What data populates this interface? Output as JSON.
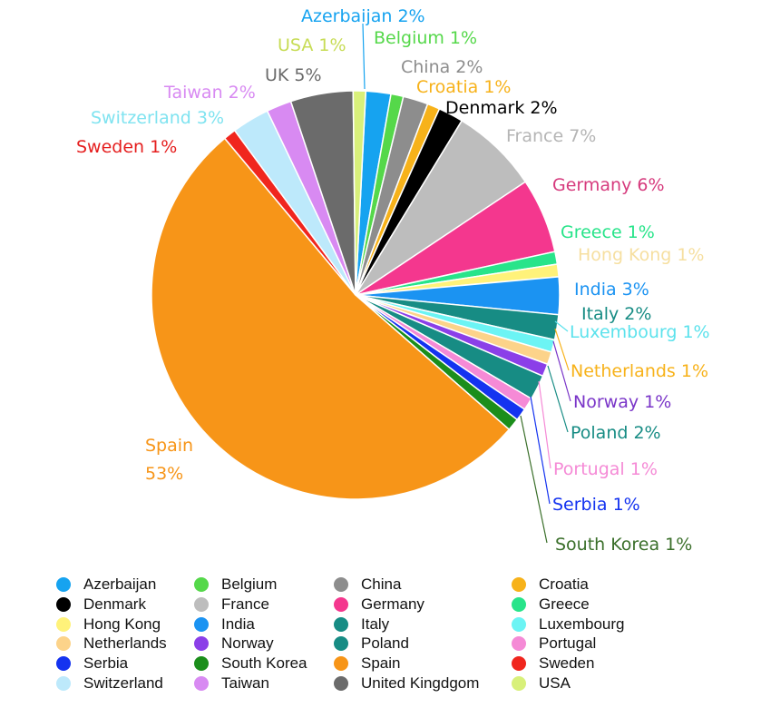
{
  "chart_data": {
    "type": "pie",
    "slices": [
      {
        "key": "azerbaijan",
        "label": "Azerbaijan 2%",
        "legend": "Azerbaijan",
        "value": 2,
        "color": "#16A3F0",
        "label_color": "#16A3F0"
      },
      {
        "key": "belgium",
        "label": "Belgium 1%",
        "legend": "Belgium",
        "value": 1,
        "color": "#55D84A",
        "label_color": "#55D84A"
      },
      {
        "key": "china",
        "label": "China 2%",
        "legend": "China",
        "value": 2,
        "color": "#8D8D8D",
        "label_color": "#8D8D8D"
      },
      {
        "key": "croatia",
        "label": "Croatia 1%",
        "legend": "Croatia",
        "value": 1,
        "color": "#F7B21A",
        "label_color": "#F7B21A"
      },
      {
        "key": "denmark",
        "label": "Denmark 2%",
        "legend": "Denmark",
        "value": 2,
        "color": "#000000",
        "label_color": "#000000"
      },
      {
        "key": "france",
        "label": "France 7%",
        "legend": "France",
        "value": 7,
        "color": "#BDBDBD",
        "label_color": "#B5B5B5"
      },
      {
        "key": "germany",
        "label": "Germany 6%",
        "legend": "Germany",
        "value": 6,
        "color": "#F4378E",
        "label_color": "#D63A7D"
      },
      {
        "key": "greece",
        "label": "Greece 1%",
        "legend": "Greece",
        "value": 1,
        "color": "#28E48A",
        "label_color": "#28E48A"
      },
      {
        "key": "hongkong",
        "label": "Hong Kong 1%",
        "legend": "Hong Kong",
        "value": 1,
        "color": "#FFF27A",
        "label_color": "#F6DFA0"
      },
      {
        "key": "india",
        "label": "India 3%",
        "legend": "India",
        "value": 3,
        "color": "#1B93F2",
        "label_color": "#1B93F2"
      },
      {
        "key": "italy",
        "label": "Italy 2%",
        "legend": "Italy",
        "value": 2,
        "color": "#178C84",
        "label_color": "#178C84"
      },
      {
        "key": "luxembourg",
        "label": "Luxembourg 1%",
        "legend": "Luxembourg",
        "value": 1,
        "color": "#6CF4F4",
        "label_color": "#5CE2EC"
      },
      {
        "key": "netherlands",
        "label": "Netherlands 1%",
        "legend": "Netherlands",
        "value": 1,
        "color": "#FCD38A",
        "label_color": "#F7B21A"
      },
      {
        "key": "norway",
        "label": "Norway 1%",
        "legend": "Norway",
        "value": 1,
        "color": "#8B3FE8",
        "label_color": "#7A35C8"
      },
      {
        "key": "poland",
        "label": "Poland 2%",
        "legend": "Poland",
        "value": 2,
        "color": "#178C84",
        "label_color": "#178C84"
      },
      {
        "key": "portugal",
        "label": "Portugal 1%",
        "legend": "Portugal",
        "value": 1,
        "color": "#F58AD6",
        "label_color": "#F58AD6"
      },
      {
        "key": "serbia",
        "label": "Serbia 1%",
        "legend": "Serbia",
        "value": 1,
        "color": "#1433F0",
        "label_color": "#1433F0"
      },
      {
        "key": "southkorea",
        "label": "South Korea 1%",
        "legend": "South Korea",
        "value": 1,
        "color": "#1B8E1B",
        "label_color": "#3A6F2A"
      },
      {
        "key": "spain",
        "label": "Spain\n53%",
        "legend": "Spain",
        "value": 53,
        "color": "#F79518",
        "label_color": "#F79518"
      },
      {
        "key": "sweden",
        "label": "Sweden 1%",
        "legend": "Sweden",
        "value": 1,
        "color": "#F0261E",
        "label_color": "#E51E1E"
      },
      {
        "key": "switzerland",
        "label": "Switzerland 3%",
        "legend": "Switzerland",
        "value": 3,
        "color": "#BDE9FB",
        "label_color": "#7FE3F0"
      },
      {
        "key": "taiwan",
        "label": "Taiwan 2%",
        "legend": "Taiwan",
        "value": 2,
        "color": "#D88AF2",
        "label_color": "#D88AF2"
      },
      {
        "key": "uk",
        "label": "UK 5%",
        "legend": "United Kingdgom",
        "value": 5,
        "color": "#6B6B6B",
        "label_color": "#6B6B6B"
      },
      {
        "key": "usa",
        "label": "USA 1%",
        "legend": "USA",
        "value": 1,
        "color": "#D8F07A",
        "label_color": "#C7DC55"
      }
    ],
    "legend_placement": "bottom",
    "legend_order": [
      "azerbaijan",
      "belgium",
      "china",
      "croatia",
      "denmark",
      "france",
      "germany",
      "greece",
      "hongkong",
      "india",
      "italy",
      "luxembourg",
      "netherlands",
      "norway",
      "poland",
      "portugal",
      "serbia",
      "southkorea",
      "spain",
      "sweden",
      "switzerland",
      "taiwan",
      "uk",
      "usa"
    ]
  }
}
